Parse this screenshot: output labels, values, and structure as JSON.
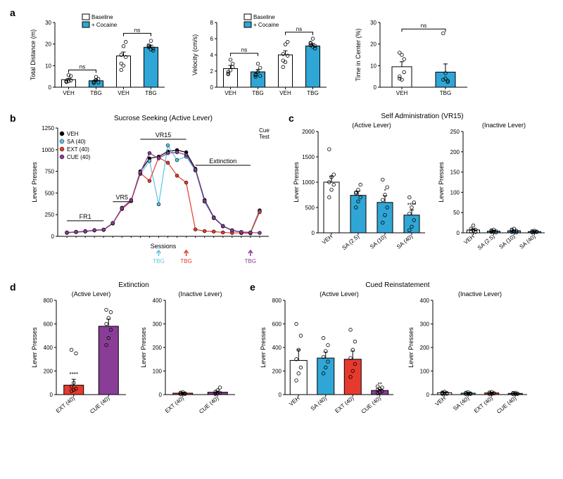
{
  "colors": {
    "white": "#ffffff",
    "blue": "#2fa6d6",
    "red": "#e63a2e",
    "purple": "#8a3d96",
    "black": "#000000",
    "lightblue": "#5cc3e8"
  },
  "a": {
    "distance": {
      "ylabel": "Total Distance (m)",
      "ylim": [
        0,
        30
      ],
      "yticks": [
        0,
        10,
        20,
        30
      ],
      "legend": [
        "Baseline",
        "+ Cocaine"
      ],
      "legend_colors": [
        "#ffffff",
        "#2fa6d6"
      ],
      "xcats": [
        "VEH",
        "TBG",
        "VEH",
        "TBG"
      ],
      "bars": [
        {
          "x": 0,
          "mean": 3.5,
          "err": 0.6,
          "fill": "#ffffff",
          "pts": [
            2.4,
            5.6,
            5.2,
            3.0,
            2.8,
            3.2,
            2.5
          ]
        },
        {
          "x": 1,
          "mean": 3.0,
          "err": 0.5,
          "fill": "#2fa6d6",
          "pts": [
            2.0,
            4.8,
            3.8,
            2.6,
            3.4,
            2.2,
            2.1
          ]
        },
        {
          "x": 2,
          "mean": 14.5,
          "err": 1.8,
          "fill": "#ffffff",
          "pts": [
            8,
            19,
            21,
            15,
            10,
            14,
            11
          ]
        },
        {
          "x": 3,
          "mean": 18.5,
          "err": 1.0,
          "fill": "#2fa6d6",
          "pts": [
            19,
            21.5,
            17,
            18.5,
            17.5,
            18,
            19.5
          ]
        }
      ],
      "sig": [
        {
          "from": 0,
          "to": 1,
          "y": 8,
          "label": "ns"
        },
        {
          "from": 2,
          "to": 3,
          "y": 25,
          "label": "ns"
        }
      ]
    },
    "velocity": {
      "ylabel": "Velocity (cm/s)",
      "ylim": [
        0,
        8
      ],
      "yticks": [
        0,
        2,
        4,
        6,
        8
      ],
      "legend": [
        "Baseline",
        "+ Cocaine"
      ],
      "legend_colors": [
        "#ffffff",
        "#2fa6d6"
      ],
      "xcats": [
        "VEH",
        "TBG",
        "VEH",
        "TBG"
      ],
      "bars": [
        {
          "x": 0,
          "mean": 2.3,
          "err": 0.4,
          "fill": "#ffffff",
          "pts": [
            1.6,
            3.4,
            2.9,
            1.9,
            2.1,
            2.5,
            1.7
          ]
        },
        {
          "x": 1,
          "mean": 1.9,
          "err": 0.3,
          "fill": "#2fa6d6",
          "pts": [
            1.3,
            2.9,
            2.4,
            1.6,
            1.9,
            1.4,
            1.5
          ]
        },
        {
          "x": 2,
          "mean": 4.0,
          "err": 0.5,
          "fill": "#ffffff",
          "pts": [
            2.5,
            5.3,
            5.6,
            4.1,
            3.1,
            3.9,
            3.3
          ]
        },
        {
          "x": 3,
          "mean": 5.1,
          "err": 0.3,
          "fill": "#2fa6d6",
          "pts": [
            5.4,
            6.0,
            4.8,
            5.2,
            5.0,
            5.1,
            5.5
          ]
        }
      ],
      "sig": [
        {
          "from": 0,
          "to": 1,
          "y": 4.2,
          "label": "ns"
        },
        {
          "from": 2,
          "to": 3,
          "y": 6.8,
          "label": "ns"
        }
      ]
    },
    "center": {
      "ylabel": "Time in Center (%)",
      "ylim": [
        0,
        30
      ],
      "yticks": [
        0,
        10,
        20,
        30
      ],
      "xcats": [
        "VEH",
        "TBG"
      ],
      "bars": [
        {
          "x": 0,
          "mean": 9.5,
          "err": 2.3,
          "fill": "#ffffff",
          "pts": [
            16,
            15,
            13,
            4,
            3.5,
            7,
            5
          ]
        },
        {
          "x": 1,
          "mean": 7.0,
          "err": 3.8,
          "fill": "#2fa6d6",
          "pts": [
            25,
            6.5,
            3,
            3.5,
            4,
            2.5
          ]
        }
      ],
      "sig": [
        {
          "from": 0,
          "to": 1,
          "y": 27,
          "label": "ns"
        }
      ]
    }
  },
  "b": {
    "title": "Sucrose Seeking (Active Lever)",
    "ylabel": "Lever Presses",
    "xlabel": "Sessions",
    "ylim": [
      0,
      1250
    ],
    "yticks": [
      0,
      250,
      500,
      750,
      1000,
      1250
    ],
    "xlim": [
      0,
      23
    ],
    "phases": [
      {
        "label": "FR1",
        "from": 1,
        "to": 5,
        "y": 180
      },
      {
        "label": "VR5",
        "from": 6,
        "to": 8,
        "y": 400
      },
      {
        "label": "VR15",
        "from": 9,
        "to": 14,
        "y": 1120
      },
      {
        "label": "Extinction",
        "from": 15,
        "to": 21,
        "y": 820
      }
    ],
    "cue_label": "Cue Test",
    "cue_x": 22.5,
    "series": [
      {
        "name": "VEH",
        "color": "#000000",
        "y": [
          40,
          50,
          55,
          70,
          75,
          150,
          320,
          410,
          750,
          900,
          920,
          980,
          995,
          970,
          780,
          420,
          220,
          120,
          70,
          50,
          45,
          300
        ]
      },
      {
        "name": "SA (40)",
        "color": "#5cc3e8",
        "y": [
          45,
          52,
          60,
          72,
          78,
          155,
          330,
          420,
          720,
          870,
          370,
          1050,
          880,
          920,
          760,
          400,
          210,
          115,
          65,
          48,
          42,
          290
        ]
      },
      {
        "name": "EXT (40)",
        "color": "#e63a2e",
        "y": [
          42,
          48,
          58,
          68,
          74,
          148,
          315,
          405,
          730,
          640,
          910,
          850,
          700,
          620,
          80,
          60,
          55,
          45,
          40,
          38,
          35,
          280
        ]
      },
      {
        "name": "CUE (40)",
        "color": "#8a3d96",
        "y": [
          44,
          51,
          57,
          71,
          76,
          152,
          325,
          415,
          740,
          960,
          900,
          960,
          970,
          940,
          770,
          410,
          215,
          118,
          68,
          49,
          43,
          40
        ]
      }
    ],
    "tbg_arrows": [
      {
        "x": 11,
        "color": "#5cc3e8"
      },
      {
        "x": 14,
        "color": "#e63a2e"
      },
      {
        "x": 21,
        "color": "#8a3d96"
      }
    ]
  },
  "c": {
    "title": "Self Administration (VR15)",
    "active": {
      "subtitle": "(Active Lever)",
      "ylabel": "Lever Presses",
      "ylim": [
        0,
        2000
      ],
      "yticks": [
        0,
        500,
        1000,
        1500,
        2000
      ],
      "xcats": [
        "VEH",
        "SA (2.5)",
        "SA (10)",
        "SA (40)"
      ],
      "bars": [
        {
          "mean": 1000,
          "err": 120,
          "fill": "#ffffff",
          "pts": [
            700,
            850,
            950,
            1000,
            1100,
            1150,
            1650
          ],
          "sig": ""
        },
        {
          "mean": 740,
          "err": 80,
          "fill": "#2fa6d6",
          "pts": [
            500,
            620,
            700,
            780,
            850,
            950,
            800
          ],
          "sig": ""
        },
        {
          "mean": 600,
          "err": 130,
          "fill": "#2fa6d6",
          "pts": [
            200,
            350,
            500,
            650,
            750,
            900,
            1050
          ],
          "sig": "*"
        },
        {
          "mean": 350,
          "err": 100,
          "fill": "#2fa6d6",
          "pts": [
            50,
            120,
            250,
            380,
            500,
            600,
            700
          ],
          "sig": "****"
        }
      ]
    },
    "inactive": {
      "subtitle": "(Inactive Lever)",
      "ylabel": "Lever Presses",
      "ylim": [
        0,
        250
      ],
      "yticks": [
        0,
        50,
        100,
        150,
        200,
        250
      ],
      "xcats": [
        "VEH",
        "SA (2.5)",
        "SA (10)",
        "SA (40)"
      ],
      "bars": [
        {
          "mean": 7,
          "err": 3,
          "fill": "#ffffff",
          "pts": [
            3,
            6,
            8,
            10,
            18,
            2,
            4
          ]
        },
        {
          "mean": 4,
          "err": 2,
          "fill": "#2fa6d6",
          "pts": [
            2,
            3,
            4,
            5,
            8,
            1,
            6
          ]
        },
        {
          "mean": 5,
          "err": 2,
          "fill": "#2fa6d6",
          "pts": [
            2,
            3,
            5,
            6,
            10,
            1,
            8
          ]
        },
        {
          "mean": 3,
          "err": 1,
          "fill": "#2fa6d6",
          "pts": [
            1,
            2,
            3,
            4,
            5,
            2,
            3
          ]
        }
      ]
    }
  },
  "d": {
    "title": "Extinction",
    "active": {
      "subtitle": "(Active Lever)",
      "ylabel": "Lever Presses",
      "ylim": [
        0,
        800
      ],
      "yticks": [
        0,
        200,
        400,
        600,
        800
      ],
      "xcats": [
        "EXT (40)",
        "CUE (40)"
      ],
      "bars": [
        {
          "mean": 80,
          "err": 50,
          "fill": "#e63a2e",
          "pts": [
            30,
            40,
            50,
            70,
            100,
            350,
            380
          ],
          "sig": "****"
        },
        {
          "mean": 580,
          "err": 60,
          "fill": "#8a3d96",
          "pts": [
            420,
            480,
            550,
            600,
            650,
            700,
            720
          ],
          "sig": ""
        }
      ]
    },
    "inactive": {
      "subtitle": "(Inactive Lever)",
      "ylabel": "Lever Presses",
      "ylim": [
        0,
        400
      ],
      "yticks": [
        0,
        100,
        200,
        300,
        400
      ],
      "xcats": [
        "EXT (40)",
        "CUE (40)"
      ],
      "bars": [
        {
          "mean": 6,
          "err": 3,
          "fill": "#e63a2e",
          "pts": [
            2,
            4,
            5,
            7,
            10,
            3,
            8
          ]
        },
        {
          "mean": 10,
          "err": 5,
          "fill": "#8a3d96",
          "pts": [
            3,
            6,
            8,
            12,
            18,
            30,
            5
          ]
        }
      ]
    }
  },
  "e": {
    "title": "Cued Reinstatement",
    "active": {
      "subtitle": "(Active Lever)",
      "ylabel": "Lever Presses",
      "ylim": [
        0,
        800
      ],
      "yticks": [
        0,
        200,
        400,
        600,
        800
      ],
      "xcats": [
        "VEH",
        "SA (40)",
        "EXT (40)",
        "CUE (40)"
      ],
      "bars": [
        {
          "mean": 290,
          "err": 90,
          "fill": "#ffffff",
          "pts": [
            120,
            180,
            230,
            300,
            380,
            500,
            600
          ],
          "sig": ""
        },
        {
          "mean": 310,
          "err": 50,
          "fill": "#2fa6d6",
          "pts": [
            180,
            230,
            280,
            320,
            370,
            420,
            480
          ],
          "sig": ""
        },
        {
          "mean": 300,
          "err": 70,
          "fill": "#e63a2e",
          "pts": [
            150,
            200,
            260,
            310,
            380,
            450,
            550
          ],
          "sig": ""
        },
        {
          "mean": 35,
          "err": 10,
          "fill": "#8a3d96",
          "pts": [
            10,
            20,
            30,
            40,
            50,
            60,
            70
          ],
          "sig": "**"
        }
      ]
    },
    "inactive": {
      "subtitle": "(Inactive Lever)",
      "ylabel": "Lever Presses",
      "ylim": [
        0,
        400
      ],
      "yticks": [
        0,
        100,
        200,
        300,
        400
      ],
      "xcats": [
        "VEH",
        "SA (40)",
        "EXT (40)",
        "CUE (40)"
      ],
      "bars": [
        {
          "mean": 8,
          "err": 3,
          "fill": "#ffffff",
          "pts": [
            3,
            5,
            7,
            9,
            12,
            4,
            6
          ]
        },
        {
          "mean": 6,
          "err": 2,
          "fill": "#2fa6d6",
          "pts": [
            2,
            4,
            5,
            7,
            10,
            3,
            8
          ]
        },
        {
          "mean": 7,
          "err": 3,
          "fill": "#e63a2e",
          "pts": [
            2,
            4,
            6,
            8,
            11,
            5,
            9
          ]
        },
        {
          "mean": 5,
          "err": 2,
          "fill": "#8a3d96",
          "pts": [
            2,
            3,
            4,
            6,
            8,
            3,
            7
          ]
        }
      ]
    }
  }
}
